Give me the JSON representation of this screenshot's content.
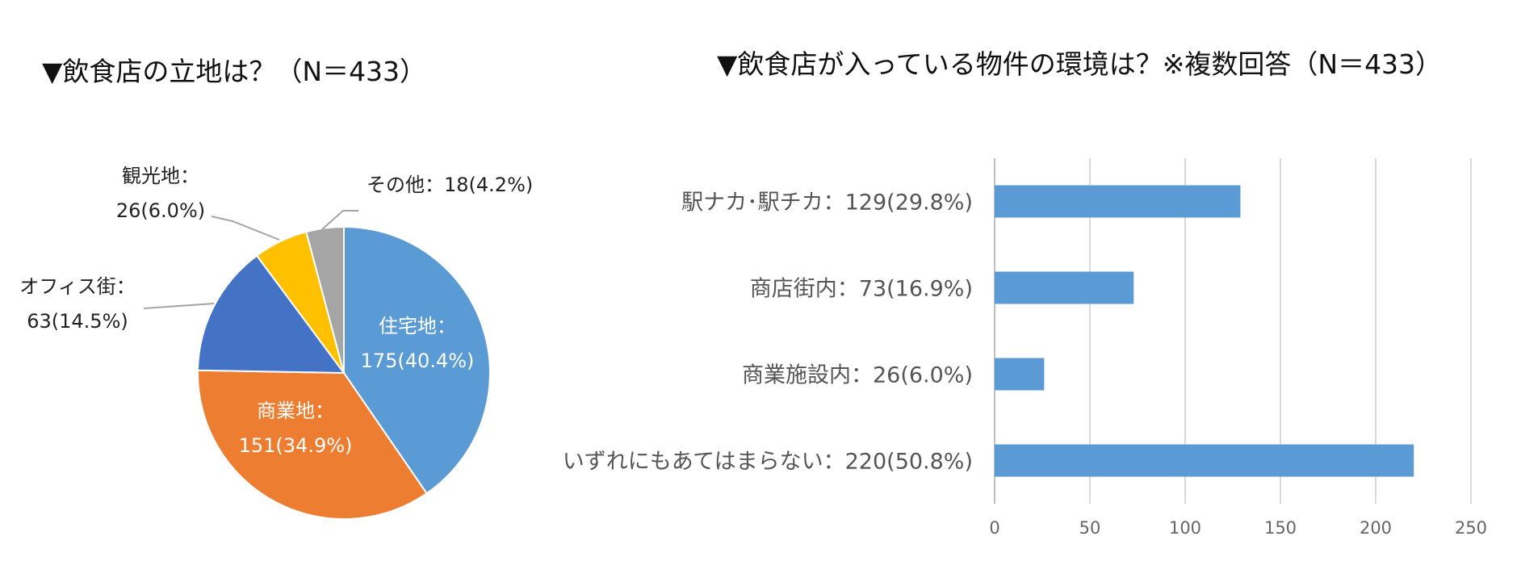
{
  "chart_data": [
    {
      "type": "pie",
      "title": "▼飲食店の立地は？（N＝433）",
      "slices": [
        {
          "name": "住宅地",
          "value": 175,
          "percent": 40.4,
          "color": "#5B9BD5",
          "label_line1": "住宅地：",
          "label_line2": "175(40.4%)"
        },
        {
          "name": "商業地",
          "value": 151,
          "percent": 34.9,
          "color": "#ED7D31",
          "label_line1": "商業地：",
          "label_line2": "151(34.9%)"
        },
        {
          "name": "オフィス街",
          "value": 63,
          "percent": 14.5,
          "color": "#4472C4",
          "label_line1": "オフィス街：",
          "label_line2": "63(14.5%)"
        },
        {
          "name": "観光地",
          "value": 26,
          "percent": 6.0,
          "color": "#FFC000",
          "label_line1": "観光地：",
          "label_line2": "26(6.0%)"
        },
        {
          "name": "その他",
          "value": 18,
          "percent": 4.2,
          "color": "#A5A5A5",
          "label_line1": "その他：18(4.2%)",
          "label_line2": ""
        }
      ]
    },
    {
      "type": "bar",
      "orientation": "horizontal",
      "title": "▼飲食店が入っている物件の環境は？※複数回答（N＝433）",
      "categories": [
        "駅ナカ・駅チカ",
        "商店街内",
        "商業施設内",
        "いずれにもあてはまらない"
      ],
      "category_labels": [
        "駅ナカ･駅チカ：129(29.8%)",
        "商店街内：73(16.9%)",
        "商業施設内：26(6.0%)",
        "いずれにもあてはまらない：220(50.8%)"
      ],
      "values": [
        129,
        73,
        26,
        220
      ],
      "percents": [
        29.8,
        16.9,
        6.0,
        50.8
      ],
      "color": "#5B9BD5",
      "xlim": [
        0,
        250
      ],
      "xticks": [
        0,
        50,
        100,
        150,
        200,
        250
      ],
      "grid": true
    }
  ]
}
